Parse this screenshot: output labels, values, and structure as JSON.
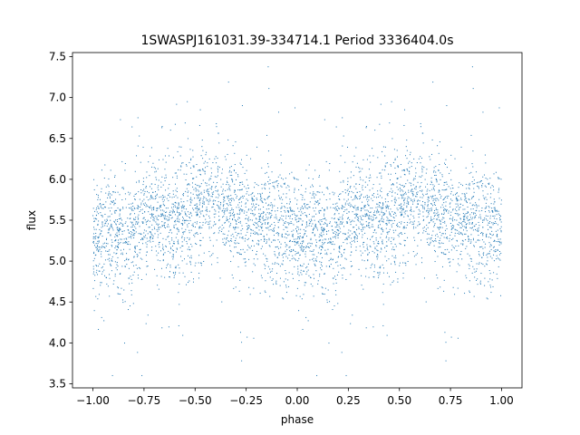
{
  "chart_data": {
    "type": "scatter",
    "title": "1SWASPJ161031.39-334714.1 Period 3336404.0s",
    "xlabel": "phase",
    "ylabel": "flux",
    "xlim": [
      -1.1,
      1.1
    ],
    "ylim": [
      3.45,
      7.55
    ],
    "xticks": [
      -1.0,
      -0.75,
      -0.5,
      -0.25,
      0.0,
      0.25,
      0.5,
      0.75,
      1.0
    ],
    "xtick_labels": [
      "−1.00",
      "−0.75",
      "−0.50",
      "−0.25",
      "0.00",
      "0.25",
      "0.50",
      "0.75",
      "1.00"
    ],
    "yticks": [
      3.5,
      4.0,
      4.5,
      5.0,
      5.5,
      6.0,
      6.5,
      7.0,
      7.5
    ],
    "ytick_labels": [
      "3.5",
      "4.0",
      "4.5",
      "5.0",
      "5.5",
      "6.0",
      "6.5",
      "7.0",
      "7.5"
    ],
    "grid": false,
    "legend": "none",
    "marker_color": "#1f77b4",
    "phase_range": [
      -1.0,
      1.0
    ],
    "flux_trend": {
      "phase": [
        0.0,
        0.05,
        0.1,
        0.15,
        0.2,
        0.25,
        0.3,
        0.35,
        0.4,
        0.45,
        0.5,
        0.55,
        0.6,
        0.65,
        0.7,
        0.75,
        0.8,
        0.85,
        0.9,
        0.95,
        1.0
      ],
      "flux": [
        5.3,
        5.3,
        5.3,
        5.3,
        5.35,
        5.45,
        5.5,
        5.5,
        5.5,
        5.55,
        5.65,
        5.75,
        5.7,
        5.65,
        5.6,
        5.55,
        5.5,
        5.5,
        5.45,
        5.4,
        5.3
      ]
    },
    "flux_spread": 0.35,
    "points_per_half": 2200
  }
}
